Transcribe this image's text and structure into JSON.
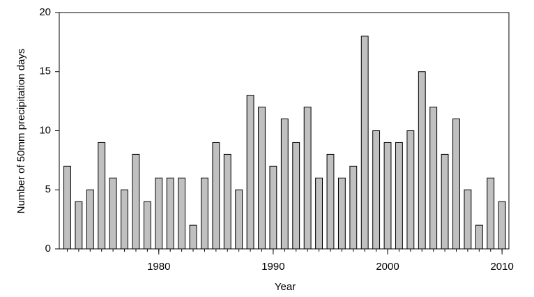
{
  "chart_data": {
    "type": "bar",
    "xlabel": "Year",
    "ylabel": "Number of 50mm precipitation days",
    "x": [
      1972,
      1973,
      1974,
      1975,
      1976,
      1977,
      1978,
      1979,
      1980,
      1981,
      1982,
      1983,
      1984,
      1985,
      1986,
      1987,
      1988,
      1989,
      1990,
      1991,
      1992,
      1993,
      1994,
      1995,
      1996,
      1997,
      1998,
      1999,
      2000,
      2001,
      2002,
      2003,
      2004,
      2005,
      2006,
      2007,
      2008,
      2009,
      2010
    ],
    "values": [
      7,
      4,
      5,
      9,
      6,
      5,
      8,
      4,
      6,
      6,
      6,
      2,
      6,
      9,
      8,
      5,
      13,
      12,
      7,
      11,
      9,
      12,
      6,
      8,
      6,
      7,
      18,
      10,
      9,
      9,
      10,
      15,
      12,
      8,
      11,
      5,
      2,
      6,
      4
    ],
    "color": "#c0c0c0",
    "xlim": [
      1971.3,
      2010.6
    ],
    "xticks": [
      1980,
      1990,
      2000,
      2010
    ],
    "ylim": [
      0,
      20
    ],
    "yticks": [
      0,
      5,
      10,
      15,
      20
    ],
    "grid": false
  }
}
